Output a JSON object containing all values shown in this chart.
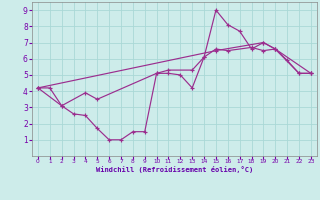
{
  "xlabel": "Windchill (Refroidissement éolien,°C)",
  "xlim": [
    -0.5,
    23.5
  ],
  "ylim": [
    0,
    9.5
  ],
  "xticks": [
    0,
    1,
    2,
    3,
    4,
    5,
    6,
    7,
    8,
    9,
    10,
    11,
    12,
    13,
    14,
    15,
    16,
    17,
    18,
    19,
    20,
    21,
    22,
    23
  ],
  "yticks": [
    1,
    2,
    3,
    4,
    5,
    6,
    7,
    8,
    9
  ],
  "bg_color": "#cdecea",
  "line_color": "#9b2d8e",
  "grid_color": "#aad8d6",
  "series1": [
    [
      0,
      4.2
    ],
    [
      1,
      4.2
    ],
    [
      2,
      3.1
    ],
    [
      3,
      2.6
    ],
    [
      4,
      2.5
    ],
    [
      5,
      1.7
    ],
    [
      6,
      1.0
    ],
    [
      7,
      1.0
    ],
    [
      8,
      1.5
    ],
    [
      9,
      1.5
    ],
    [
      10,
      5.1
    ],
    [
      11,
      5.1
    ],
    [
      12,
      5.0
    ],
    [
      13,
      4.2
    ],
    [
      14,
      6.1
    ],
    [
      15,
      9.0
    ],
    [
      16,
      8.1
    ],
    [
      17,
      7.7
    ],
    [
      18,
      6.6
    ],
    [
      19,
      7.0
    ],
    [
      20,
      6.6
    ],
    [
      21,
      5.9
    ],
    [
      22,
      5.1
    ],
    [
      23,
      5.1
    ]
  ],
  "series2": [
    [
      0,
      4.2
    ],
    [
      2,
      3.1
    ],
    [
      4,
      3.9
    ],
    [
      5,
      3.5
    ],
    [
      10,
      5.1
    ],
    [
      11,
      5.3
    ],
    [
      13,
      5.3
    ],
    [
      14,
      6.1
    ],
    [
      15,
      6.6
    ],
    [
      16,
      6.5
    ],
    [
      18,
      6.7
    ],
    [
      19,
      6.5
    ],
    [
      20,
      6.6
    ],
    [
      22,
      5.1
    ],
    [
      23,
      5.1
    ]
  ],
  "series3": [
    [
      0,
      4.2
    ],
    [
      15,
      6.5
    ],
    [
      19,
      7.0
    ],
    [
      20,
      6.6
    ],
    [
      23,
      5.1
    ]
  ]
}
